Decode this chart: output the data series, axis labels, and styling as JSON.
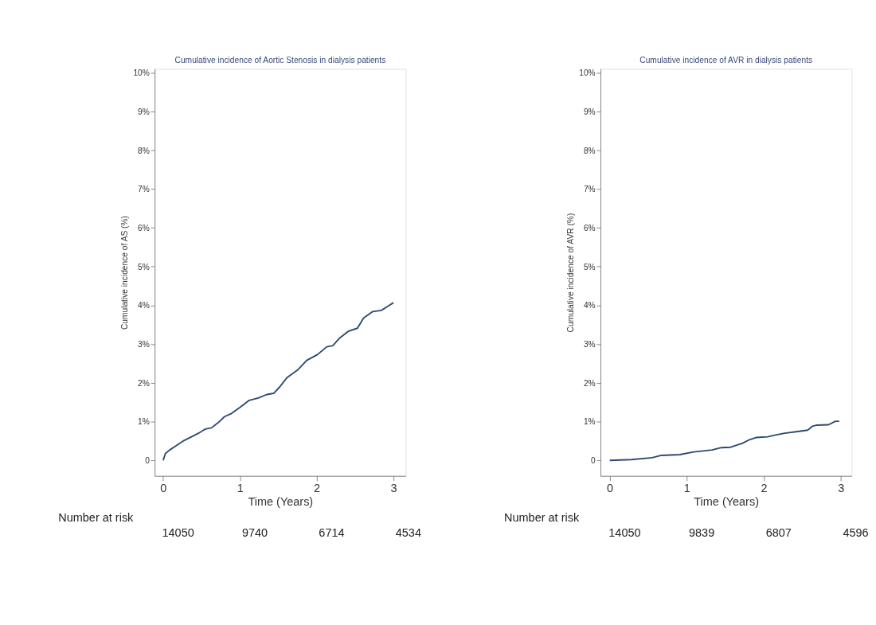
{
  "chart_data": [
    {
      "type": "line",
      "title": "Cumulative incidence of Aortic Stenosis in dialysis patients",
      "xlabel": "Time (Years)",
      "ylabel": "Cumulative incidence of AS (%)",
      "x": [
        0,
        0.03,
        0.086,
        0.17,
        0.26,
        0.37,
        0.46,
        0.55,
        0.63,
        0.72,
        0.8,
        0.89,
        1.01,
        1.12,
        1.24,
        1.35,
        1.44,
        1.52,
        1.61,
        1.75,
        1.87,
        2.01,
        2.13,
        2.21,
        2.3,
        2.41,
        2.53,
        2.61,
        2.73,
        2.84,
        2.93,
        3.0
      ],
      "series": [
        {
          "color": "#2e4a70",
          "values": [
            0,
            0.18,
            0.27,
            0.38,
            0.5,
            0.61,
            0.7,
            0.81,
            0.84,
            0.98,
            1.13,
            1.21,
            1.38,
            1.55,
            1.61,
            1.7,
            1.73,
            1.9,
            2.13,
            2.33,
            2.58,
            2.73,
            2.93,
            2.96,
            3.16,
            3.33,
            3.41,
            3.67,
            3.84,
            3.87,
            3.98,
            4.07
          ]
        }
      ],
      "xlim": [
        -0.11,
        3.16
      ],
      "xticks": [
        0,
        1,
        2,
        3
      ],
      "ylim": [
        -0.4,
        10.1
      ],
      "yticks": [
        0,
        {
          "value": 1,
          "label": "1%"
        },
        {
          "value": 2,
          "label": "2%"
        },
        {
          "value": 3,
          "label": "3%"
        },
        {
          "value": 4,
          "label": "4%"
        },
        {
          "value": 5,
          "label": "5%"
        },
        {
          "value": 6,
          "label": "6%"
        },
        {
          "value": 7,
          "label": "7%"
        },
        {
          "value": 8,
          "label": "8%"
        },
        {
          "value": 9,
          "label": "9%"
        },
        {
          "value": 10,
          "label": "10%"
        }
      ],
      "grid": false,
      "marker": "none",
      "line_style": "solid",
      "annotations": [
        "Number at risk",
        "14050",
        "9740",
        "6714",
        "4534"
      ]
    },
    {
      "type": "line",
      "title": "Cumulative incidence of AVR in dialysis patients",
      "xlabel": "Time (Years)",
      "ylabel": "Cumulative incidence of AVR (%)",
      "x": [
        0,
        0.28,
        0.55,
        0.67,
        0.91,
        1.09,
        1.33,
        1.45,
        1.57,
        1.72,
        1.81,
        1.9,
        2.05,
        2.14,
        2.27,
        2.42,
        2.57,
        2.63,
        2.69,
        2.84,
        2.93,
        2.98
      ],
      "series": [
        {
          "color": "#2e4a70",
          "values": [
            0,
            0.02,
            0.07,
            0.13,
            0.15,
            0.22,
            0.27,
            0.33,
            0.34,
            0.44,
            0.53,
            0.59,
            0.61,
            0.65,
            0.7,
            0.74,
            0.78,
            0.88,
            0.91,
            0.92,
            1.01,
            1.01
          ]
        }
      ],
      "xlim": [
        -0.12,
        3.14
      ],
      "xticks": [
        0,
        1,
        2,
        3
      ],
      "ylim": [
        -0.4,
        10.1
      ],
      "yticks": [
        0,
        {
          "value": 1,
          "label": "1%"
        },
        {
          "value": 2,
          "label": "2%"
        },
        {
          "value": 3,
          "label": "3%"
        },
        {
          "value": 4,
          "label": "4%"
        },
        {
          "value": 5,
          "label": "5%"
        },
        {
          "value": 6,
          "label": "6%"
        },
        {
          "value": 7,
          "label": "7%"
        },
        {
          "value": 8,
          "label": "8%"
        },
        {
          "value": 9,
          "label": "9%"
        },
        {
          "value": 10,
          "label": "10%"
        }
      ],
      "grid": false,
      "marker": "none",
      "line_style": "solid",
      "annotations": [
        "Number at risk",
        "14050",
        "9839",
        "6807",
        "4596"
      ]
    }
  ]
}
